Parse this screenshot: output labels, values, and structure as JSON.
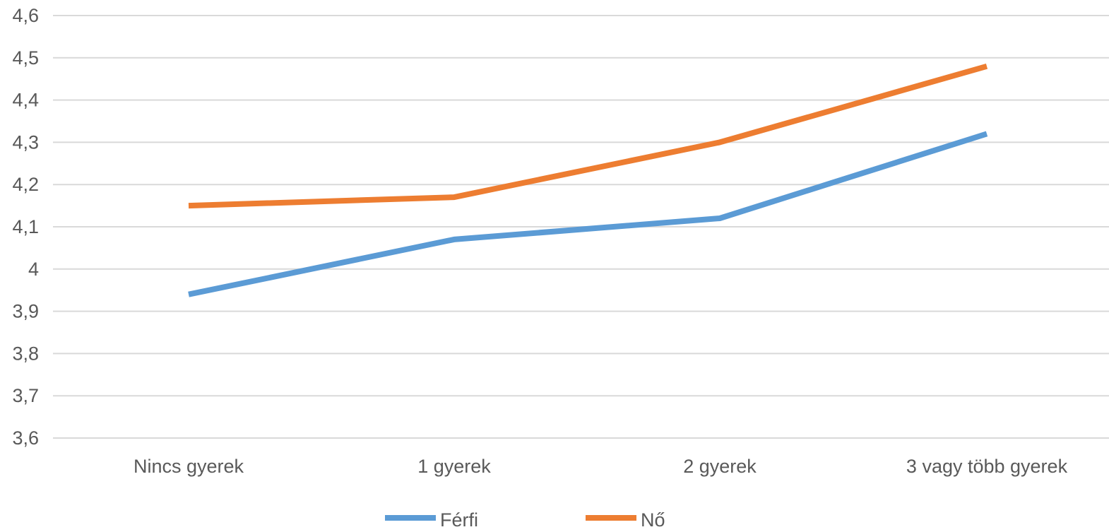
{
  "chart_data": {
    "type": "line",
    "categories": [
      "Nincs gyerek",
      "1 gyerek",
      "2 gyerek",
      "3 vagy több gyerek"
    ],
    "series": [
      {
        "name": "Férfi",
        "color": "#5b9bd5",
        "values": [
          3.94,
          4.07,
          4.12,
          4.32
        ]
      },
      {
        "name": "Nő",
        "color": "#ed7d31",
        "values": [
          4.15,
          4.17,
          4.3,
          4.48
        ]
      }
    ],
    "y_ticks": [
      "4,6",
      "4,5",
      "4,4",
      "4,3",
      "4,2",
      "4,1",
      "4",
      "3,9",
      "3,8",
      "3,7",
      "3,6"
    ],
    "ylim": [
      3.6,
      4.6
    ],
    "grid": true,
    "legend_position": "bottom",
    "title": "",
    "xlabel": "",
    "ylabel": ""
  }
}
